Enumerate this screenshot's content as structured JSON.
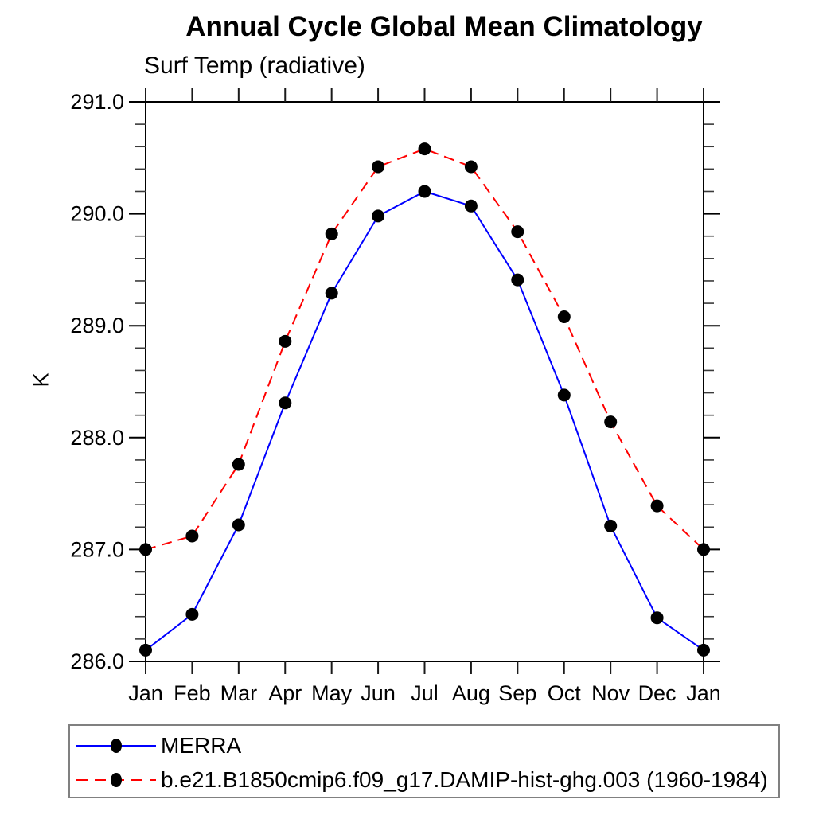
{
  "chart": {
    "title": "Annual Cycle Global Mean Climatology",
    "subtitle": "Surf Temp (radiative)",
    "y_axis_label": "K"
  },
  "legend": {
    "items": [
      {
        "label": "MERRA",
        "color": "#0000ff",
        "line_style": "solid",
        "marker": "filled-circle",
        "marker_color": "#000000"
      },
      {
        "label": "b.e21.B1850cmip6.f09_g17.DAMIP-hist-ghg.003 (1960-1984)",
        "color": "#ff0000",
        "line_style": "dashed",
        "marker": "filled-circle",
        "marker_color": "#000000"
      }
    ]
  },
  "chart_data": {
    "type": "line",
    "title": "Annual Cycle Global Mean Climatology",
    "subtitle": "Surf Temp (radiative)",
    "xlabel": "",
    "ylabel": "K",
    "categories": [
      "Jan",
      "Feb",
      "Mar",
      "Apr",
      "May",
      "Jun",
      "Jul",
      "Aug",
      "Sep",
      "Oct",
      "Nov",
      "Dec",
      "Jan"
    ],
    "series": [
      {
        "name": "MERRA",
        "color": "#0000ff",
        "dash": "solid",
        "marker": "circle",
        "marker_color": "#000000",
        "values": [
          286.1,
          286.42,
          287.22,
          288.31,
          289.29,
          289.98,
          290.2,
          290.07,
          289.41,
          288.38,
          287.21,
          286.39,
          286.1
        ]
      },
      {
        "name": "b.e21.B1850cmip6.f09_g17.DAMIP-hist-ghg.003 (1960-1984)",
        "color": "#ff0000",
        "dash": "dashed",
        "marker": "circle",
        "marker_color": "#000000",
        "values": [
          287.0,
          287.12,
          287.76,
          288.86,
          289.82,
          290.42,
          290.58,
          290.42,
          289.84,
          289.08,
          288.14,
          287.39,
          287.0
        ]
      }
    ],
    "ylim": [
      286.0,
      291.0
    ],
    "ytick_major": [
      286.0,
      287.0,
      288.0,
      289.0,
      290.0,
      291.0
    ],
    "ytick_labels": [
      "286.0",
      "287.0",
      "288.0",
      "289.0",
      "290.0",
      "291.0"
    ],
    "ytick_minor_step": 0.2,
    "grid": false,
    "frame": "box",
    "legend_position": "bottom-left-box"
  }
}
